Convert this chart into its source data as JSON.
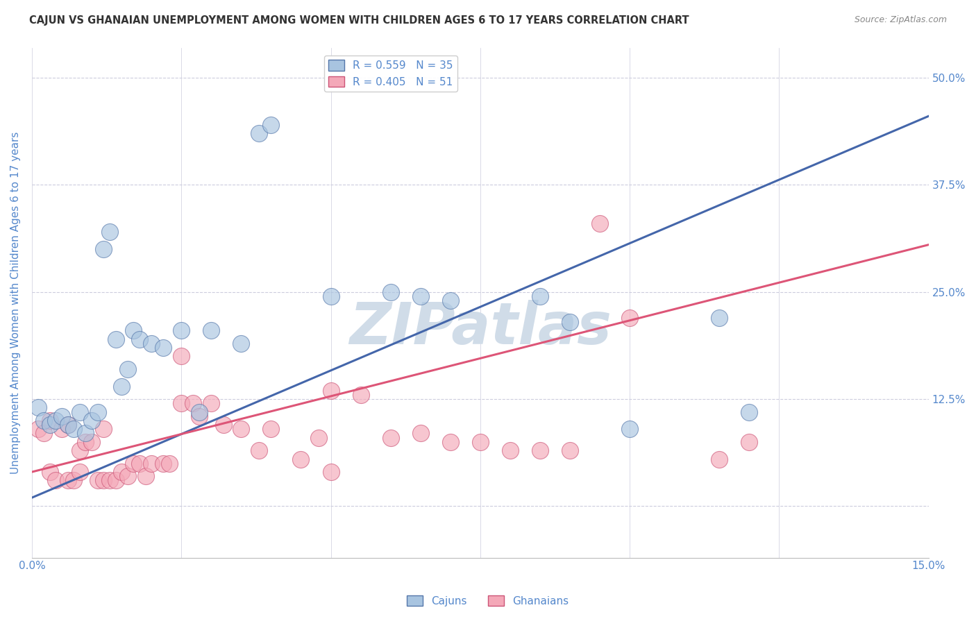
{
  "title": "CAJUN VS GHANAIAN UNEMPLOYMENT AMONG WOMEN WITH CHILDREN AGES 6 TO 17 YEARS CORRELATION CHART",
  "source": "Source: ZipAtlas.com",
  "ylabel": "Unemployment Among Women with Children Ages 6 to 17 years",
  "xlim": [
    0.0,
    0.15
  ],
  "ylim": [
    -0.06,
    0.535
  ],
  "xticks": [
    0.0,
    0.025,
    0.05,
    0.075,
    0.1,
    0.125,
    0.15
  ],
  "xticklabels": [
    "0.0%",
    "",
    "",
    "",
    "",
    "",
    "15.0%"
  ],
  "yticks": [
    0.0,
    0.125,
    0.25,
    0.375,
    0.5
  ],
  "yticklabels": [
    "",
    "12.5%",
    "25.0%",
    "37.5%",
    "50.0%"
  ],
  "blue_R": 0.559,
  "blue_N": 35,
  "pink_R": 0.405,
  "pink_N": 51,
  "blue_line_x": [
    0.0,
    0.15
  ],
  "blue_line_y": [
    0.01,
    0.455
  ],
  "pink_line_x": [
    0.0,
    0.15
  ],
  "pink_line_y": [
    0.04,
    0.305
  ],
  "blue_color": "#A8C4E0",
  "pink_color": "#F4A8B8",
  "blue_edge_color": "#5577AA",
  "pink_edge_color": "#CC5577",
  "blue_line_color": "#4466AA",
  "pink_line_color": "#DD5577",
  "background_color": "#FFFFFF",
  "grid_color": "#CCCCDD",
  "title_color": "#333333",
  "axis_label_color": "#5588CC",
  "source_color": "#888888",
  "watermark_color": "#D0DCE8",
  "cajun_x": [
    0.001,
    0.002,
    0.003,
    0.004,
    0.005,
    0.006,
    0.007,
    0.008,
    0.009,
    0.01,
    0.011,
    0.012,
    0.013,
    0.014,
    0.015,
    0.016,
    0.017,
    0.018,
    0.02,
    0.022,
    0.025,
    0.028,
    0.03,
    0.035,
    0.038,
    0.04,
    0.05,
    0.06,
    0.065,
    0.07,
    0.085,
    0.09,
    0.1,
    0.115,
    0.12
  ],
  "cajun_y": [
    0.115,
    0.1,
    0.095,
    0.1,
    0.105,
    0.095,
    0.09,
    0.11,
    0.085,
    0.1,
    0.11,
    0.3,
    0.32,
    0.195,
    0.14,
    0.16,
    0.205,
    0.195,
    0.19,
    0.185,
    0.205,
    0.11,
    0.205,
    0.19,
    0.435,
    0.445,
    0.245,
    0.25,
    0.245,
    0.24,
    0.245,
    0.215,
    0.09,
    0.22,
    0.11
  ],
  "ghanaian_x": [
    0.001,
    0.002,
    0.003,
    0.003,
    0.004,
    0.005,
    0.006,
    0.006,
    0.007,
    0.008,
    0.008,
    0.009,
    0.01,
    0.011,
    0.012,
    0.012,
    0.013,
    0.014,
    0.015,
    0.016,
    0.017,
    0.018,
    0.019,
    0.02,
    0.022,
    0.023,
    0.025,
    0.027,
    0.028,
    0.03,
    0.032,
    0.035,
    0.038,
    0.04,
    0.045,
    0.048,
    0.05,
    0.055,
    0.06,
    0.065,
    0.07,
    0.075,
    0.08,
    0.085,
    0.09,
    0.095,
    0.1,
    0.115,
    0.12,
    0.05,
    0.025
  ],
  "ghanaian_y": [
    0.09,
    0.085,
    0.04,
    0.1,
    0.03,
    0.09,
    0.095,
    0.03,
    0.03,
    0.065,
    0.04,
    0.075,
    0.075,
    0.03,
    0.09,
    0.03,
    0.03,
    0.03,
    0.04,
    0.035,
    0.05,
    0.05,
    0.035,
    0.05,
    0.05,
    0.05,
    0.12,
    0.12,
    0.105,
    0.12,
    0.095,
    0.09,
    0.065,
    0.09,
    0.055,
    0.08,
    0.135,
    0.13,
    0.08,
    0.085,
    0.075,
    0.075,
    0.065,
    0.065,
    0.065,
    0.33,
    0.22,
    0.055,
    0.075,
    0.04,
    0.175
  ]
}
